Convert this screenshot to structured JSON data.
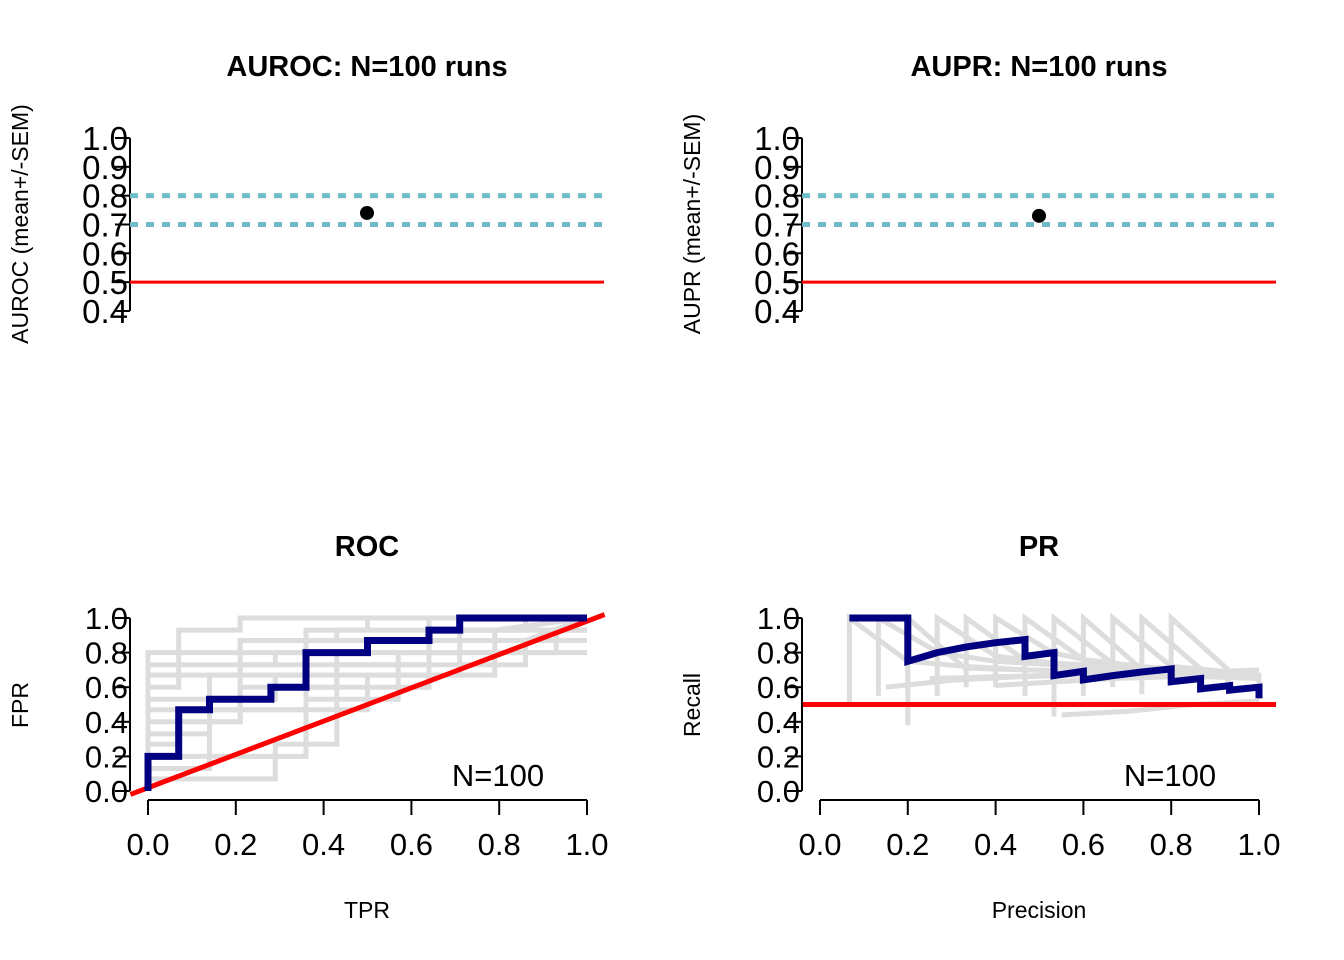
{
  "chart_data": [
    {
      "type": "scatter",
      "title": "AUROC: N=100 runs",
      "xlabel": "",
      "ylabel": "AUROC (mean+/-SEM)",
      "ylim": [
        0.4,
        1.0
      ],
      "yticks": [
        "0.4",
        "0.5",
        "0.6",
        "0.7",
        "0.8",
        "0.9",
        "1.0"
      ],
      "point": {
        "mean": 0.74,
        "sem": 0.006
      },
      "reference_lines": [
        {
          "y": 0.5,
          "style": "solid",
          "color": "#ff0000"
        },
        {
          "y": 0.7,
          "style": "dotted",
          "color": "#6fbcc8"
        },
        {
          "y": 0.8,
          "style": "dotted",
          "color": "#6fbcc8"
        }
      ]
    },
    {
      "type": "scatter",
      "title": "AUPR: N=100 runs",
      "xlabel": "",
      "ylabel": "AUPR (mean+/-SEM)",
      "ylim": [
        0.4,
        1.0
      ],
      "yticks": [
        "0.4",
        "0.5",
        "0.6",
        "0.7",
        "0.8",
        "0.9",
        "1.0"
      ],
      "point": {
        "mean": 0.73,
        "sem": 0.006
      },
      "reference_lines": [
        {
          "y": 0.5,
          "style": "solid",
          "color": "#ff0000"
        },
        {
          "y": 0.7,
          "style": "dotted",
          "color": "#6fbcc8"
        },
        {
          "y": 0.8,
          "style": "dotted",
          "color": "#6fbcc8"
        }
      ]
    },
    {
      "type": "line",
      "title": "ROC",
      "xlabel": "TPR",
      "ylabel": "FPR",
      "xlim": [
        0,
        1
      ],
      "ylim": [
        0,
        1
      ],
      "xticks": [
        "0.0",
        "0.2",
        "0.4",
        "0.6",
        "0.8",
        "1.0"
      ],
      "yticks": [
        "0.0",
        "0.2",
        "0.4",
        "0.6",
        "0.8",
        "1.0"
      ],
      "annotation": "N=100",
      "highlight_color": "#000080",
      "background_color": "#dddddd",
      "diagonal": {
        "from": [
          -0.04,
          -0.02
        ],
        "to": [
          1.04,
          1.02
        ],
        "color": "#ff0000"
      },
      "highlight_curve": {
        "x": [
          0,
          0,
          0.07,
          0.07,
          0.14,
          0.14,
          0.28,
          0.28,
          0.36,
          0.36,
          0.5,
          0.5,
          0.64,
          0.64,
          0.71,
          0.71,
          1.0
        ],
        "y": [
          0,
          0.2,
          0.2,
          0.47,
          0.47,
          0.53,
          0.53,
          0.6,
          0.6,
          0.8,
          0.8,
          0.87,
          0.87,
          0.93,
          0.93,
          1.0,
          1.0
        ]
      },
      "background_curves": [
        {
          "x": [
            0,
            0,
            0.36,
            0.36,
            0.5,
            0.5,
            1.0
          ],
          "y": [
            0,
            0.8,
            0.8,
            0.93,
            0.93,
            1.0,
            1.0
          ]
        },
        {
          "x": [
            0,
            0,
            0.07,
            0.07,
            0.21,
            0.21,
            0.43,
            0.43,
            1.0
          ],
          "y": [
            0,
            0.73,
            0.73,
            0.93,
            0.93,
            1.0,
            1.0,
            1.0,
            1.0
          ]
        },
        {
          "x": [
            0,
            0,
            0.14,
            0.14,
            0.36,
            0.36,
            0.64,
            0.64,
            1.0
          ],
          "y": [
            0,
            0.53,
            0.53,
            0.67,
            0.67,
            0.87,
            0.87,
            1.0,
            1.0
          ]
        },
        {
          "x": [
            0,
            0,
            0.21,
            0.21,
            0.43,
            0.43,
            0.71,
            0.71,
            1.0
          ],
          "y": [
            0,
            0.4,
            0.4,
            0.6,
            0.6,
            0.8,
            0.8,
            0.93,
            0.93
          ]
        },
        {
          "x": [
            0,
            0,
            0.36,
            0.36,
            0.57,
            0.57,
            0.86,
            0.86,
            1.0
          ],
          "y": [
            0,
            0.2,
            0.2,
            0.53,
            0.53,
            0.73,
            0.73,
            0.87,
            1.0
          ]
        },
        {
          "x": [
            0,
            0,
            0.07,
            0.07,
            0.29,
            0.29,
            0.5,
            0.5,
            1.0
          ],
          "y": [
            0,
            0.6,
            0.6,
            0.73,
            0.73,
            0.8,
            0.8,
            0.87,
            0.87
          ]
        },
        {
          "x": [
            0,
            0,
            0.14,
            0.14,
            0.29,
            0.29,
            0.79,
            0.79,
            1.0
          ],
          "y": [
            0,
            0.33,
            0.33,
            0.53,
            0.53,
            0.67,
            0.67,
            0.93,
            1.0
          ]
        },
        {
          "x": [
            0,
            0,
            0.21,
            0.21,
            0.43,
            0.43,
            0.86,
            0.86,
            1.0
          ],
          "y": [
            0,
            0.67,
            0.67,
            0.87,
            0.87,
            0.93,
            0.93,
            1.0,
            1.0
          ]
        },
        {
          "x": [
            0,
            0,
            0.36,
            0.36,
            0.64,
            0.64,
            0.93,
            0.93,
            1.0
          ],
          "y": [
            0,
            0.47,
            0.47,
            0.6,
            0.6,
            0.8,
            0.8,
            0.93,
            0.93
          ]
        },
        {
          "x": [
            0,
            0,
            0.07,
            0.07,
            0.21,
            0.21,
            0.57,
            0.57,
            1.0
          ],
          "y": [
            0,
            0.27,
            0.27,
            0.4,
            0.4,
            0.73,
            0.73,
            0.8,
            0.8
          ]
        },
        {
          "x": [
            0,
            0,
            0.14,
            0.14,
            0.5,
            0.5,
            0.71,
            0.71,
            1.0
          ],
          "y": [
            0,
            0.13,
            0.13,
            0.47,
            0.47,
            0.67,
            0.67,
            0.87,
            0.87
          ]
        },
        {
          "x": [
            0,
            0,
            0.29,
            0.29,
            0.43,
            0.43,
            0.64,
            0.64,
            1.0
          ],
          "y": [
            0,
            0.07,
            0.07,
            0.27,
            0.27,
            0.73,
            0.73,
            0.93,
            0.93
          ]
        }
      ]
    },
    {
      "type": "line",
      "title": "PR",
      "xlabel": "Precision",
      "ylabel": "Recall",
      "xlim": [
        0,
        1
      ],
      "ylim": [
        0,
        1
      ],
      "xticks": [
        "0.0",
        "0.2",
        "0.4",
        "0.6",
        "0.8",
        "1.0"
      ],
      "yticks": [
        "0.0",
        "0.2",
        "0.4",
        "0.6",
        "0.8",
        "1.0"
      ],
      "annotation": "N=100",
      "highlight_color": "#000080",
      "background_color": "#dddddd",
      "baseline": {
        "y": 0.5,
        "color": "#ff0000"
      },
      "highlight_curve": {
        "x": [
          0.067,
          0.2,
          0.2,
          0.267,
          0.333,
          0.4,
          0.467,
          0.467,
          0.533,
          0.533,
          0.6,
          0.6,
          0.667,
          0.733,
          0.8,
          0.8,
          0.867,
          0.867,
          0.933,
          0.933,
          1.0,
          1.0
        ],
        "y": [
          1.0,
          1.0,
          0.75,
          0.8,
          0.833,
          0.857,
          0.875,
          0.778,
          0.8,
          0.667,
          0.692,
          0.643,
          0.667,
          0.688,
          0.706,
          0.632,
          0.65,
          0.591,
          0.609,
          0.583,
          0.6,
          0.536
        ]
      },
      "background_curves": [
        {
          "x": [
            0.067,
            0.067,
            0.2,
            0.33,
            0.47,
            0.6,
            0.73,
            0.87,
            1.0
          ],
          "y": [
            0.5,
            1.0,
            0.75,
            0.72,
            0.7,
            0.69,
            0.68,
            0.67,
            0.67
          ]
        },
        {
          "x": [
            0.133,
            0.133,
            0.27,
            0.4,
            0.53,
            0.67,
            0.8,
            0.93,
            0.93
          ],
          "y": [
            0.55,
            1.0,
            0.8,
            0.75,
            0.73,
            0.71,
            0.7,
            0.69,
            0.6
          ]
        },
        {
          "x": [
            0.2,
            0.2,
            0.33,
            0.47,
            0.6,
            0.73,
            0.87,
            1.0,
            1.0
          ],
          "y": [
            0.38,
            1.0,
            0.71,
            0.7,
            0.69,
            0.67,
            0.66,
            0.65,
            0.55
          ]
        },
        {
          "x": [
            0.267,
            0.267,
            0.4,
            0.53,
            0.67,
            0.8,
            0.93,
            0.93
          ],
          "y": [
            0.55,
            1.0,
            0.78,
            0.74,
            0.72,
            0.7,
            0.69,
            0.62
          ]
        },
        {
          "x": [
            0.333,
            0.333,
            0.47,
            0.6,
            0.73,
            0.87,
            1.0,
            1.0
          ],
          "y": [
            0.6,
            1.0,
            0.75,
            0.71,
            0.69,
            0.67,
            0.66,
            0.58
          ]
        },
        {
          "x": [
            0.4,
            0.4,
            0.53,
            0.67,
            0.8,
            0.93,
            0.93
          ],
          "y": [
            0.6,
            1.0,
            0.8,
            0.72,
            0.7,
            0.68,
            0.6
          ]
        },
        {
          "x": [
            0.467,
            0.467,
            0.6,
            0.73,
            0.87,
            1.0,
            1.0
          ],
          "y": [
            0.55,
            1.0,
            0.76,
            0.72,
            0.69,
            0.67,
            0.57
          ]
        },
        {
          "x": [
            0.533,
            0.533,
            0.67,
            0.8,
            0.93,
            0.93
          ],
          "y": [
            0.43,
            1.0,
            0.73,
            0.7,
            0.68,
            0.56
          ]
        },
        {
          "x": [
            0.6,
            0.6,
            0.73,
            0.87,
            1.0,
            1.0
          ],
          "y": [
            0.55,
            1.0,
            0.71,
            0.68,
            0.66,
            0.53
          ]
        },
        {
          "x": [
            0.667,
            0.667,
            0.8,
            0.93,
            0.93
          ],
          "y": [
            0.6,
            1.0,
            0.72,
            0.69,
            0.6
          ]
        },
        {
          "x": [
            0.733,
            0.733,
            0.87,
            1.0,
            1.0
          ],
          "y": [
            0.56,
            1.0,
            0.7,
            0.67,
            0.55
          ]
        },
        {
          "x": [
            0.8,
            0.8,
            0.93,
            0.93
          ],
          "y": [
            0.62,
            1.0,
            0.7,
            0.63
          ]
        },
        {
          "x": [
            0.4,
            0.53,
            0.67,
            0.8,
            0.93,
            1.0
          ],
          "y": [
            0.61,
            0.63,
            0.65,
            0.66,
            0.67,
            0.68
          ]
        },
        {
          "x": [
            0.25,
            0.4,
            0.55,
            0.7,
            0.85,
            1.0
          ],
          "y": [
            0.65,
            0.66,
            0.67,
            0.68,
            0.68,
            0.69
          ]
        },
        {
          "x": [
            0.55,
            0.7,
            0.85,
            1.0
          ],
          "y": [
            0.44,
            0.46,
            0.5,
            0.52
          ]
        },
        {
          "x": [
            0.15,
            0.3,
            0.45,
            0.6,
            0.75,
            0.9,
            1.0
          ],
          "y": [
            0.6,
            0.64,
            0.66,
            0.67,
            0.68,
            0.69,
            0.7
          ]
        }
      ]
    }
  ]
}
